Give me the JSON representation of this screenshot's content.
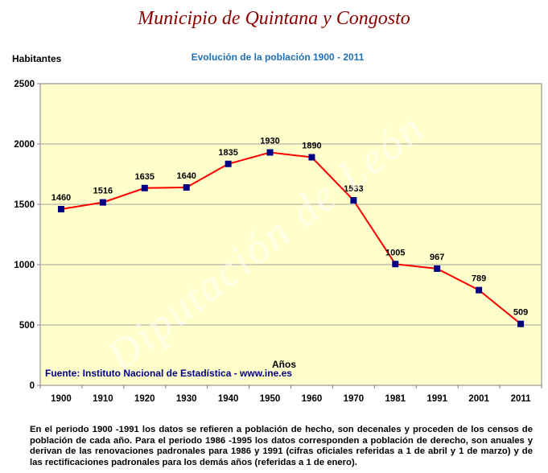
{
  "header": {
    "title": "Municipio de Quintana y Congosto"
  },
  "watermark": "Diputación de León",
  "source": "Fuente: Instituto Nacional de Estadística - www.ine.es",
  "note": "En el periodo 1900 -1991 los datos se refieren a población de hecho, son decenales y proceden de los censos de población de cada año. Para el periodo 1986 -1995 los datos corresponden a población de derecho, son anuales y derivan de las renovaciones padronales para 1986 y 1991 (cifras oficiales referidas a 1 de abril y 1 de marzo) y de las rectificaciones padronales para los demás años (referidas a 1 de enero).",
  "colors": {
    "plot_background": "#ffffcc",
    "line": "#ff0000",
    "marker": "#000080",
    "title": "#8b0000",
    "subtitle": "#1f6fb5"
  },
  "chart_data": {
    "type": "line",
    "title": "Evolución de la población 1900 - 2011",
    "xlabel": "Años",
    "ylabel": "Habitantes",
    "ylim": [
      0,
      2500
    ],
    "yticks": [
      "0",
      "500",
      "1000",
      "1500",
      "2000",
      "2500"
    ],
    "grid": true,
    "categories": [
      "1900",
      "1910",
      "1920",
      "1930",
      "1940",
      "1950",
      "1960",
      "1970",
      "1981",
      "1991",
      "2001",
      "2011"
    ],
    "series": [
      {
        "values": [
          1460,
          1516,
          1635,
          1640,
          1835,
          1930,
          1890,
          1533,
          1005,
          967,
          789,
          509
        ],
        "labels": [
          "1460",
          "1516",
          "1635",
          "1640",
          "1835",
          "1930",
          "1890",
          "1533",
          "1005",
          "967",
          "789",
          "509"
        ]
      }
    ]
  }
}
